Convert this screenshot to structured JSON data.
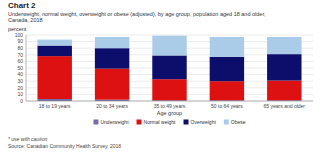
{
  "chart_data": {
    "type": "bar",
    "stacked": true,
    "title": "Chart 2",
    "subtitle": [
      "Underweight, normal weight, overweight or obese (adjusted), by age group, population aged 18 and older,",
      "Canada, 2018"
    ],
    "y_label": "percent",
    "x_label": "Age group",
    "categories": [
      "18 to 19 years",
      "20 to 34 years",
      "35 to 49 years",
      "50 to 64 years",
      "65 years and older"
    ],
    "series": [
      {
        "name": "Underweight",
        "color": "#7070aa",
        "values": [
          3.0,
          2.0,
          1.0,
          1.0,
          1.0
        ]
      },
      {
        "name": "Normal weight",
        "color": "#dd1111",
        "values": [
          65.0,
          47.0,
          32.0,
          29.0,
          30.0
        ]
      },
      {
        "name": "Overweight",
        "color": "#0d0d6b",
        "values": [
          16.0,
          31.0,
          36.0,
          37.0,
          40.0
        ]
      },
      {
        "name": "Obese",
        "color": "#aacce8",
        "values": [
          9.0,
          17.0,
          30.0,
          30.0,
          26.0
        ]
      }
    ],
    "ylim": [
      0,
      100
    ],
    "yticks": [
      0,
      10,
      20,
      30,
      40,
      50,
      60,
      70,
      80,
      90,
      100
    ],
    "grid": true,
    "legend": "bottom",
    "annotations": [
      "* use with caution",
      "Source: Canadian Community Health Survey, 2018"
    ]
  }
}
